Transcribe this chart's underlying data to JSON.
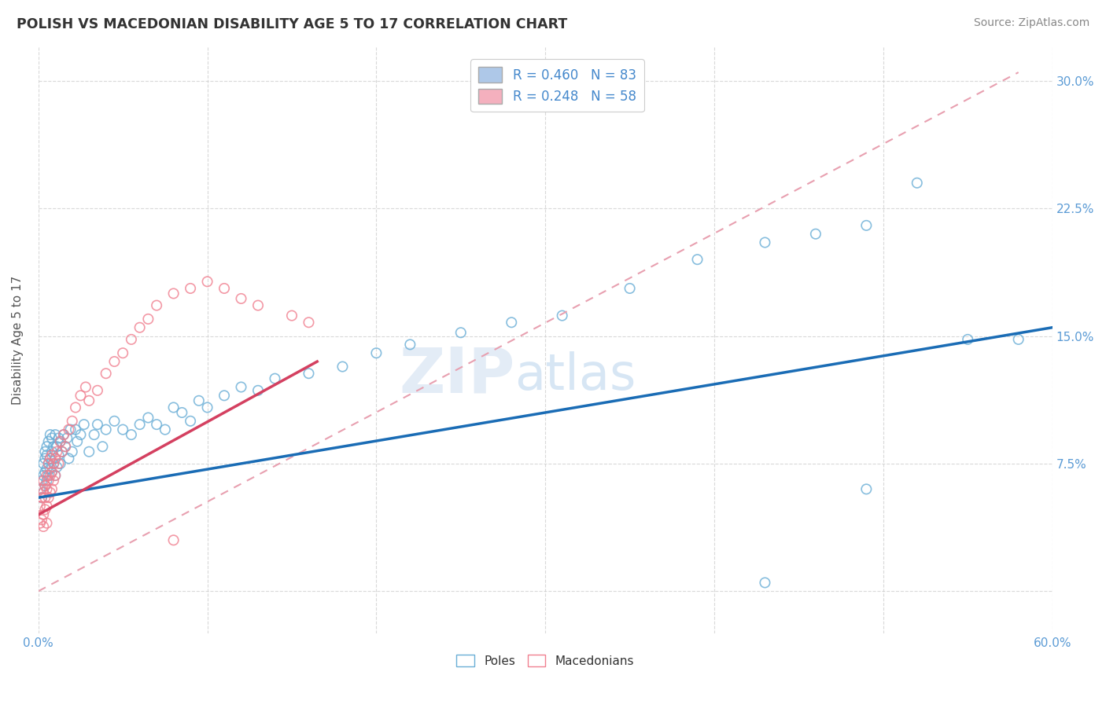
{
  "title": "POLISH VS MACEDONIAN DISABILITY AGE 5 TO 17 CORRELATION CHART",
  "source": "Source: ZipAtlas.com",
  "ylabel": "Disability Age 5 to 17",
  "poles_color": "#6aaed6",
  "poles_edge_color": "#4a90c4",
  "macedonians_color": "#f08090",
  "macedonians_edge_color": "#e06070",
  "poles_line_color": "#1a6cb5",
  "macedonians_line_color": "#d44060",
  "dashed_line_color": "#e8a0b0",
  "xlim": [
    0.0,
    0.6
  ],
  "ylim": [
    -0.025,
    0.32
  ],
  "ytick_vals": [
    0.0,
    0.075,
    0.15,
    0.225,
    0.3
  ],
  "ytick_labels": [
    "",
    "7.5%",
    "15.0%",
    "22.5%",
    "30.0%"
  ],
  "xtick_show": [
    "0.0%",
    "",
    "",
    "",
    "",
    "",
    "60.0%"
  ],
  "grid_color": "#d0d0d0",
  "watermark_color": "#ccddf0",
  "legend1_fill": "#aec8e8",
  "legend2_fill": "#f4b0be",
  "poles_regression": [
    0.0,
    0.6,
    0.055,
    0.155
  ],
  "macedonians_regression": [
    0.0,
    0.165,
    0.045,
    0.135
  ],
  "dashed_line": [
    0.0,
    0.58,
    0.0,
    0.305
  ],
  "poles_scatter_x": [
    0.001,
    0.002,
    0.002,
    0.003,
    0.003,
    0.003,
    0.004,
    0.004,
    0.004,
    0.004,
    0.005,
    0.005,
    0.005,
    0.005,
    0.006,
    0.006,
    0.006,
    0.007,
    0.007,
    0.007,
    0.008,
    0.008,
    0.008,
    0.009,
    0.009,
    0.01,
    0.01,
    0.01,
    0.011,
    0.011,
    0.012,
    0.012,
    0.013,
    0.013,
    0.014,
    0.015,
    0.016,
    0.017,
    0.018,
    0.019,
    0.02,
    0.022,
    0.023,
    0.025,
    0.027,
    0.03,
    0.033,
    0.035,
    0.038,
    0.04,
    0.045,
    0.05,
    0.055,
    0.06,
    0.065,
    0.07,
    0.075,
    0.08,
    0.085,
    0.09,
    0.095,
    0.1,
    0.11,
    0.12,
    0.13,
    0.14,
    0.16,
    0.18,
    0.2,
    0.22,
    0.25,
    0.28,
    0.31,
    0.35,
    0.39,
    0.43,
    0.46,
    0.49,
    0.52,
    0.55,
    0.58,
    0.49,
    0.43
  ],
  "poles_scatter_y": [
    0.06,
    0.055,
    0.065,
    0.058,
    0.068,
    0.075,
    0.062,
    0.07,
    0.078,
    0.082,
    0.065,
    0.072,
    0.08,
    0.085,
    0.068,
    0.075,
    0.088,
    0.072,
    0.078,
    0.092,
    0.07,
    0.082,
    0.09,
    0.075,
    0.085,
    0.068,
    0.078,
    0.092,
    0.073,
    0.085,
    0.08,
    0.09,
    0.075,
    0.088,
    0.082,
    0.092,
    0.085,
    0.09,
    0.078,
    0.095,
    0.082,
    0.095,
    0.088,
    0.092,
    0.098,
    0.082,
    0.092,
    0.098,
    0.085,
    0.095,
    0.1,
    0.095,
    0.092,
    0.098,
    0.102,
    0.098,
    0.095,
    0.108,
    0.105,
    0.1,
    0.112,
    0.108,
    0.115,
    0.12,
    0.118,
    0.125,
    0.128,
    0.132,
    0.14,
    0.145,
    0.152,
    0.158,
    0.162,
    0.178,
    0.195,
    0.205,
    0.21,
    0.215,
    0.24,
    0.148,
    0.148,
    0.06,
    0.005
  ],
  "macedonians_scatter_x": [
    0.001,
    0.001,
    0.002,
    0.002,
    0.002,
    0.003,
    0.003,
    0.003,
    0.003,
    0.004,
    0.004,
    0.004,
    0.005,
    0.005,
    0.005,
    0.005,
    0.006,
    0.006,
    0.006,
    0.007,
    0.007,
    0.007,
    0.008,
    0.008,
    0.008,
    0.009,
    0.009,
    0.01,
    0.01,
    0.011,
    0.012,
    0.013,
    0.014,
    0.015,
    0.016,
    0.018,
    0.02,
    0.022,
    0.025,
    0.028,
    0.03,
    0.035,
    0.04,
    0.045,
    0.05,
    0.055,
    0.06,
    0.065,
    0.07,
    0.08,
    0.09,
    0.1,
    0.11,
    0.12,
    0.13,
    0.15,
    0.16,
    0.08
  ],
  "macedonians_scatter_y": [
    0.04,
    0.05,
    0.042,
    0.055,
    0.06,
    0.038,
    0.045,
    0.058,
    0.065,
    0.048,
    0.055,
    0.062,
    0.04,
    0.05,
    0.06,
    0.068,
    0.055,
    0.065,
    0.075,
    0.058,
    0.068,
    0.078,
    0.06,
    0.07,
    0.08,
    0.065,
    0.075,
    0.068,
    0.078,
    0.082,
    0.075,
    0.088,
    0.082,
    0.092,
    0.085,
    0.095,
    0.1,
    0.108,
    0.115,
    0.12,
    0.112,
    0.118,
    0.128,
    0.135,
    0.14,
    0.148,
    0.155,
    0.16,
    0.168,
    0.175,
    0.178,
    0.182,
    0.178,
    0.172,
    0.168,
    0.162,
    0.158,
    0.03
  ]
}
